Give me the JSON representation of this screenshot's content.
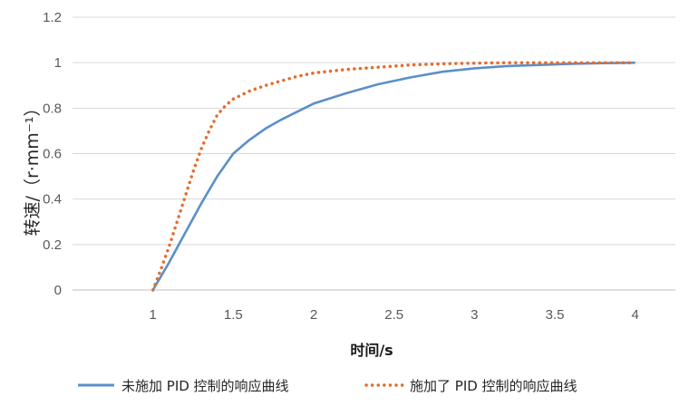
{
  "chart_data": {
    "type": "line",
    "xlabel": "时间/s",
    "ylabel": "转速/（r·mm⁻¹）",
    "xlim": [
      0.5,
      4.25
    ],
    "ylim": [
      0,
      1.2
    ],
    "x_ticks": [
      "1",
      "1.5",
      "2",
      "2.5",
      "3",
      "3.5",
      "4"
    ],
    "y_ticks": [
      "0",
      "0.2",
      "0.4",
      "0.6",
      "0.8",
      "1",
      "1.2"
    ],
    "grid": "horizontal",
    "legend_position": "bottom",
    "series": [
      {
        "name": "未施加 PID 控制的响应曲线",
        "style": "solid",
        "color": "#5B8FC9",
        "x": [
          1.0,
          1.1,
          1.2,
          1.3,
          1.4,
          1.5,
          1.6,
          1.7,
          1.8,
          1.9,
          2.0,
          2.2,
          2.4,
          2.6,
          2.8,
          3.0,
          3.2,
          3.4,
          3.6,
          3.8,
          4.0
        ],
        "y": [
          0.0,
          0.12,
          0.25,
          0.38,
          0.5,
          0.6,
          0.66,
          0.71,
          0.75,
          0.785,
          0.82,
          0.865,
          0.905,
          0.935,
          0.96,
          0.975,
          0.985,
          0.99,
          0.995,
          0.998,
          1.0
        ]
      },
      {
        "name": "施加了 PID 控制的响应曲线",
        "style": "dotted",
        "color": "#E36C2C",
        "x": [
          1.0,
          1.05,
          1.1,
          1.15,
          1.2,
          1.25,
          1.3,
          1.35,
          1.4,
          1.45,
          1.5,
          1.6,
          1.7,
          1.8,
          1.9,
          2.0,
          2.2,
          2.4,
          2.6,
          2.8,
          3.0,
          3.2,
          3.4,
          3.6,
          3.8,
          4.0
        ],
        "y": [
          0.0,
          0.09,
          0.19,
          0.3,
          0.41,
          0.52,
          0.62,
          0.7,
          0.77,
          0.81,
          0.84,
          0.875,
          0.9,
          0.92,
          0.94,
          0.955,
          0.97,
          0.98,
          0.99,
          0.995,
          0.998,
          1.0,
          1.0,
          1.0,
          1.0,
          1.0
        ]
      }
    ]
  }
}
